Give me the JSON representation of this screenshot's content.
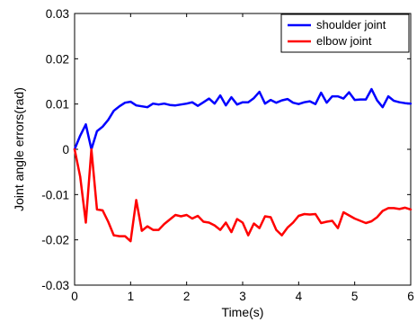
{
  "chart_data": {
    "type": "line",
    "title": "",
    "xlabel": "Time(s)",
    "ylabel": "Joint angle errors(rad)",
    "xlim": [
      0,
      6
    ],
    "ylim": [
      -0.03,
      0.03
    ],
    "xticks": [
      "0",
      "1",
      "2",
      "3",
      "4",
      "5",
      "6"
    ],
    "yticks": [
      "0.03",
      "0.02",
      "0.01",
      "0",
      "-0.01",
      "-0.02",
      "-0.03"
    ],
    "grid": false,
    "legend_position": "top-right",
    "series": [
      {
        "name": "shoulder joint",
        "color": "#0000ff",
        "x": [
          0,
          0.1,
          0.2,
          0.3,
          0.4,
          0.5,
          0.6,
          0.7,
          0.8,
          0.9,
          1.0,
          1.1,
          1.2,
          1.3,
          1.4,
          1.5,
          1.6,
          1.7,
          1.8,
          1.9,
          2.0,
          2.1,
          2.2,
          2.3,
          2.4,
          2.5,
          2.6,
          2.7,
          2.8,
          2.9,
          3.0,
          3.1,
          3.2,
          3.3,
          3.4,
          3.5,
          3.6,
          3.7,
          3.8,
          3.9,
          4.0,
          4.1,
          4.2,
          4.3,
          4.4,
          4.5,
          4.6,
          4.7,
          4.8,
          4.9,
          5.0,
          5.1,
          5.2,
          5.3,
          5.4,
          5.5,
          5.6,
          5.7,
          5.8,
          5.9,
          6.0
        ],
        "y": [
          0,
          0.003,
          0.0055,
          0.0,
          0.004,
          0.005,
          0.0065,
          0.0085,
          0.0095,
          0.0103,
          0.0105,
          0.0097,
          0.0095,
          0.0093,
          0.0101,
          0.0099,
          0.0101,
          0.0098,
          0.0097,
          0.0099,
          0.0101,
          0.0104,
          0.0096,
          0.0104,
          0.0112,
          0.0101,
          0.0119,
          0.0097,
          0.0115,
          0.0099,
          0.0104,
          0.0104,
          0.0113,
          0.0127,
          0.0101,
          0.0109,
          0.0103,
          0.0108,
          0.0111,
          0.0103,
          0.01,
          0.0104,
          0.0106,
          0.01,
          0.0125,
          0.0103,
          0.0117,
          0.0117,
          0.0112,
          0.0126,
          0.0109,
          0.011,
          0.011,
          0.0133,
          0.0108,
          0.0093,
          0.0117,
          0.0107,
          0.0104,
          0.0102,
          0.0101
        ]
      },
      {
        "name": "elbow joint",
        "color": "#ff0000",
        "x": [
          0,
          0.1,
          0.2,
          0.3,
          0.4,
          0.5,
          0.6,
          0.7,
          0.8,
          0.9,
          1.0,
          1.1,
          1.2,
          1.3,
          1.4,
          1.5,
          1.6,
          1.7,
          1.8,
          1.9,
          2.0,
          2.1,
          2.2,
          2.3,
          2.4,
          2.5,
          2.6,
          2.7,
          2.8,
          2.9,
          3.0,
          3.1,
          3.2,
          3.3,
          3.4,
          3.5,
          3.6,
          3.7,
          3.8,
          3.9,
          4.0,
          4.1,
          4.2,
          4.3,
          4.4,
          4.5,
          4.6,
          4.7,
          4.8,
          4.9,
          5.0,
          5.1,
          5.2,
          5.3,
          5.4,
          5.5,
          5.6,
          5.7,
          5.8,
          5.9,
          6.0
        ],
        "y": [
          0,
          -0.006,
          -0.0162,
          0.0,
          -0.0133,
          -0.0135,
          -0.016,
          -0.019,
          -0.0192,
          -0.0192,
          -0.0203,
          -0.0112,
          -0.018,
          -0.017,
          -0.0178,
          -0.0178,
          -0.0165,
          -0.0155,
          -0.0145,
          -0.0148,
          -0.0145,
          -0.0153,
          -0.0147,
          -0.016,
          -0.0162,
          -0.0168,
          -0.0178,
          -0.0162,
          -0.0183,
          -0.0154,
          -0.0162,
          -0.019,
          -0.0164,
          -0.0174,
          -0.0148,
          -0.015,
          -0.0178,
          -0.019,
          -0.0173,
          -0.0162,
          -0.0147,
          -0.0143,
          -0.0144,
          -0.0143,
          -0.0163,
          -0.016,
          -0.0158,
          -0.0174,
          -0.0139,
          -0.0146,
          -0.0153,
          -0.0158,
          -0.0163,
          -0.0159,
          -0.015,
          -0.0136,
          -0.013,
          -0.013,
          -0.0132,
          -0.0129,
          -0.0133
        ]
      }
    ]
  }
}
